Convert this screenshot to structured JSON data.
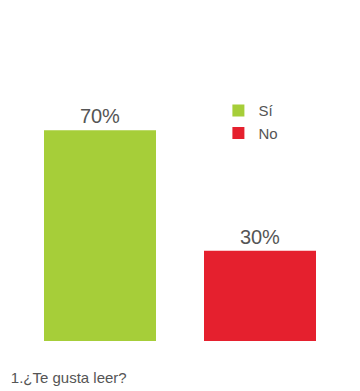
{
  "chart_data": {
    "type": "bar",
    "title": "1.¿Te gusta leer?",
    "categories": [
      "Sí",
      "No"
    ],
    "values": [
      70,
      30
    ],
    "value_labels": [
      "70%",
      "30%"
    ],
    "colors": [
      "#a6ce39",
      "#e5202e"
    ],
    "ylim": [
      0,
      100
    ],
    "data_labels": true,
    "tick_labels": false,
    "grid": false,
    "legend": "right"
  }
}
